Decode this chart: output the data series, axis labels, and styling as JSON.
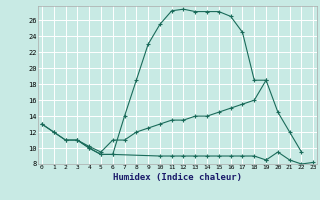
{
  "xlabel": "Humidex (Indice chaleur)",
  "bg_color": "#c8eae4",
  "line_color": "#1a6b5a",
  "grid_color": "#ffffff",
  "series": [
    {
      "x": [
        0,
        1,
        2,
        3,
        4,
        5,
        6,
        7,
        8,
        9,
        10,
        11,
        12,
        13,
        14,
        15,
        16,
        17,
        18,
        19
      ],
      "y": [
        13,
        12,
        11,
        11,
        10,
        9.2,
        9.2,
        14,
        18.5,
        23,
        25.5,
        27.2,
        27.4,
        27.1,
        27.1,
        27.1,
        26.5,
        24.5,
        18.5,
        18.5
      ]
    },
    {
      "x": [
        0,
        1,
        2,
        3,
        4,
        5,
        6,
        7,
        8,
        9,
        10,
        11,
        12,
        13,
        14,
        15,
        16,
        17,
        18,
        19,
        20,
        21,
        22
      ],
      "y": [
        13,
        12,
        11,
        11,
        10.2,
        9.5,
        11.0,
        11.0,
        12,
        12.5,
        13,
        13.5,
        13.5,
        14,
        14,
        14.5,
        15,
        15.5,
        16,
        18.5,
        14.5,
        12,
        9.5
      ]
    },
    {
      "x": [
        3,
        4,
        5,
        6,
        10,
        11,
        12,
        13,
        14,
        15,
        16,
        17,
        18,
        19
      ],
      "y": [
        11,
        10,
        9.2,
        9.2,
        9,
        9,
        9,
        9,
        9,
        9,
        9,
        9,
        9,
        8.5
      ]
    },
    {
      "x": [
        19,
        20,
        21,
        22,
        23
      ],
      "y": [
        8.5,
        9.5,
        8.5,
        8,
        8.2
      ]
    }
  ],
  "xlim": [
    -0.3,
    23.3
  ],
  "ylim": [
    8,
    27.8
  ],
  "yticks": [
    8,
    10,
    12,
    14,
    16,
    18,
    20,
    22,
    24,
    26
  ],
  "xticks": [
    0,
    1,
    2,
    3,
    4,
    5,
    6,
    7,
    8,
    9,
    10,
    11,
    12,
    13,
    14,
    15,
    16,
    17,
    18,
    19,
    20,
    21,
    22,
    23
  ]
}
